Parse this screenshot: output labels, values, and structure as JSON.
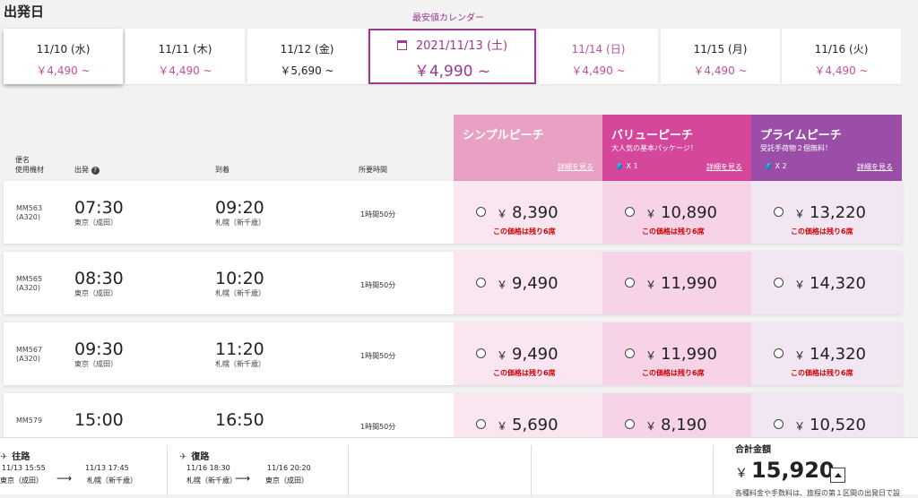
{
  "page_title": "出発日",
  "calendar_link": "最安値カレンダー",
  "dates": [
    {
      "date": "11/10 (水)",
      "price": "￥4,490 ~"
    },
    {
      "date": "11/11 (木)",
      "price": "￥4,490 ~"
    },
    {
      "date": "11/12 (金)",
      "price": "￥5,690 ~"
    },
    {
      "date": "2021/11/13 (土)",
      "price": "￥4,990 ~"
    },
    {
      "date": "11/14 (日)",
      "price": "￥4,490 ~"
    },
    {
      "date": "11/15 (月)",
      "price": "￥4,490 ~"
    },
    {
      "date": "11/16 (火)",
      "price": "￥4,490 ~"
    }
  ],
  "selected_date_index": 3,
  "fares": [
    {
      "name": "シンプルピーチ",
      "sub": "",
      "bags": "",
      "details": "詳細を見る",
      "color": "#e8a0c4"
    },
    {
      "name": "バリューピーチ",
      "sub": "大人気の基本パッケージ！",
      "bags": "X 1",
      "details": "詳細を見る",
      "color": "#d4479a"
    },
    {
      "name": "プライムピーチ",
      "sub": "受託手荷物２個無料！",
      "bags": "X 2",
      "details": "詳細を見る",
      "color": "#9a4ea8"
    }
  ],
  "columns": {
    "flight": "便名",
    "aircraft": "使用機材",
    "departure": "出発",
    "arrival": "到着",
    "duration": "所要時間"
  },
  "flights": [
    {
      "flight_no": "MM563",
      "aircraft": "(A320)",
      "dep_time": "07:30",
      "dep_airport": "東京（成田）",
      "arr_time": "09:20",
      "arr_airport": "札幌（新千歳）",
      "duration": "1時間50分",
      "prices": [
        "8,390",
        "10,890",
        "13,220"
      ],
      "remaining": [
        "この価格は残り6席",
        "この価格は残り6席",
        "この価格は残り6席"
      ]
    },
    {
      "flight_no": "MM565",
      "aircraft": "(A320)",
      "dep_time": "08:30",
      "dep_airport": "東京（成田）",
      "arr_time": "10:20",
      "arr_airport": "札幌（新千歳）",
      "duration": "1時間50分",
      "prices": [
        "9,490",
        "11,990",
        "14,320"
      ],
      "remaining": [
        "",
        "",
        ""
      ]
    },
    {
      "flight_no": "MM567",
      "aircraft": "(A320)",
      "dep_time": "09:30",
      "dep_airport": "東京（成田）",
      "arr_time": "11:20",
      "arr_airport": "札幌（新千歳）",
      "duration": "1時間50分",
      "prices": [
        "9,490",
        "11,990",
        "14,320"
      ],
      "remaining": [
        "この価格は残り6席",
        "この価格は残り6席",
        "この価格は残り6席"
      ]
    },
    {
      "flight_no": "MM579",
      "aircraft": "",
      "dep_time": "15:00",
      "dep_airport": "",
      "arr_time": "16:50",
      "arr_airport": "",
      "duration": "1時間50分",
      "prices": [
        "5,690",
        "8,190",
        "10,520"
      ],
      "remaining": [
        "",
        "",
        ""
      ]
    }
  ],
  "currency": "￥",
  "summary": {
    "outbound_label": "往路",
    "outbound_dep": "11/13 15:55",
    "outbound_dep_airport": "東京（成田）",
    "outbound_arr": "11/13 17:45",
    "outbound_arr_airport": "札幌（新千歳）",
    "return_label": "復路",
    "return_dep": "11/16 18:30",
    "return_dep_airport": "札幌（新千歳）",
    "return_arr": "11/16 20:20",
    "return_arr_airport": "東京（成田）",
    "arrow": "⟶",
    "total_label": "合計金額",
    "total": "15,920",
    "note": "各種料金や手数料は、旅程の第１区間の出発日で設"
  }
}
